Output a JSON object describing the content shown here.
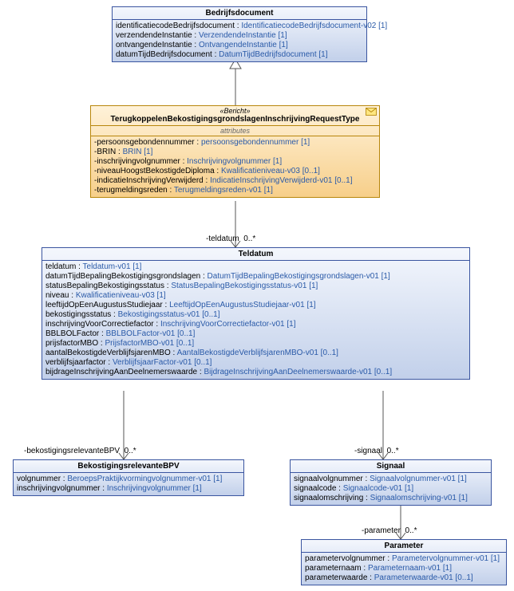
{
  "colors": {
    "blue_border": "#3a55a0",
    "blue_grad_top": "#f4f7fd",
    "blue_grad_bot": "#c2d0ea",
    "orange_border": "#b8860b",
    "orange_grad_top": "#fff2d9",
    "orange_grad_bot": "#f7cf8a",
    "type_text": "#2a5aa8"
  },
  "bedrijfsdocument": {
    "title": "Bedrijfsdocument",
    "attrs": [
      {
        "name": "identificatiecodeBedrijfsdocument",
        "type": "IdentificatiecodeBedrijfsdocument-v02",
        "mult": "[1]"
      },
      {
        "name": "verzendendeInstantie",
        "type": "VerzendendeInstantie",
        "mult": "[1]"
      },
      {
        "name": "ontvangendeInstantie",
        "type": "OntvangendeInstantie",
        "mult": "[1]"
      },
      {
        "name": "datumTijdBedrijfsdocument",
        "type": "DatumTijdBedrijfsdocument",
        "mult": "[1]"
      }
    ]
  },
  "bericht": {
    "stereo": "«Bericht»",
    "title": "TerugkoppelenBekostigingsgrondslagenInschrijvingRequestType",
    "subheader": "attributes",
    "attrs": [
      {
        "name": "-persoonsgebondennummer",
        "type": "persoonsgebondennummer",
        "mult": "[1]"
      },
      {
        "name": "-BRIN",
        "type": "BRIN",
        "mult": "[1]"
      },
      {
        "name": "-inschrijvingvolgnummer",
        "type": "Inschrijvingvolgnummer",
        "mult": "[1]"
      },
      {
        "name": "-niveauHoogstBekostigdeDiploma",
        "type": "Kwalificatieniveau-v03",
        "mult": "[0..1]"
      },
      {
        "name": "-indicatieInschrijvingVerwijderd",
        "type": "IndicatieInschrijvingVerwijderd-v01",
        "mult": "[0..1]"
      },
      {
        "name": "-terugmeldingsreden",
        "type": "Terugmeldingsreden-v01",
        "mult": "[1]"
      }
    ]
  },
  "teldatum": {
    "title": "Teldatum",
    "attrs": [
      {
        "name": "teldatum",
        "type": "Teldatum-v01",
        "mult": "[1]"
      },
      {
        "name": "datumTijdBepalingBekostigingsgrondslagen",
        "type": "DatumTijdBepalingBekostigingsgrondslagen-v01",
        "mult": "[1]"
      },
      {
        "name": "statusBepalingBekostigingsstatus",
        "type": "StatusBepalingBekostigingsstatus-v01",
        "mult": "[1]"
      },
      {
        "name": "niveau",
        "type": "Kwalificatieniveau-v03",
        "mult": "[1]"
      },
      {
        "name": "leeftijdOpEenAugustusStudiejaar",
        "type": "LeeftijdOpEenAugustusStudiejaar-v01",
        "mult": "[1]"
      },
      {
        "name": "bekostigingsstatus",
        "type": "Bekostigingsstatus-v01",
        "mult": "[0..1]"
      },
      {
        "name": "inschrijvingVoorCorrectiefactor",
        "type": "InschrijvingVoorCorrectiefactor-v01",
        "mult": "[1]"
      },
      {
        "name": "BBLBOLFactor",
        "type": "BBLBOLFactor-v01",
        "mult": "[0..1]"
      },
      {
        "name": "prijsfactorMBO",
        "type": "PrijsfactorMBO-v01",
        "mult": "[0..1]"
      },
      {
        "name": "aantalBekostigdeVerblijfsjarenMBO",
        "type": "AantalBekostigdeVerblijfsjarenMBO-v01",
        "mult": "[0..1]"
      },
      {
        "name": "verblijfsjaarfactor",
        "type": "VerblijfsjaarFactor-v01",
        "mult": "[0..1]"
      },
      {
        "name": "bijdrageInschrijvingAanDeelnemerswaarde",
        "type": "BijdrageInschrijvingAanDeelnemerswaarde-v01",
        "mult": "[0..1]"
      }
    ]
  },
  "bpv": {
    "title": "BekostigingsrelevanteBPV",
    "attrs": [
      {
        "name": "volgnummer",
        "type": "BeroepsPraktijkvormingvolgnummer-v01",
        "mult": "[1]"
      },
      {
        "name": "inschrijvingvolgnummer",
        "type": "Inschrijvingvolgnummer",
        "mult": "[1]"
      }
    ]
  },
  "signaal": {
    "title": "Signaal",
    "attrs": [
      {
        "name": "signaalvolgnummer",
        "type": "Signaalvolgnummer-v01",
        "mult": "[1]"
      },
      {
        "name": "signaalcode",
        "type": "Signaalcode-v01",
        "mult": "[1]"
      },
      {
        "name": "signaalomschrijving",
        "type": "Signaalomschrijving-v01",
        "mult": "[1]"
      }
    ]
  },
  "parameter": {
    "title": "Parameter",
    "attrs": [
      {
        "name": "parametervolgnummer",
        "type": "Parametervolgnummer-v01",
        "mult": "[1]"
      },
      {
        "name": "parameternaam",
        "type": "Parameternaam-v01",
        "mult": "[1]"
      },
      {
        "name": "parameterwaarde",
        "type": "Parameterwaarde-v01",
        "mult": "[0..1]"
      }
    ]
  },
  "labels": {
    "teldatum_assoc": "-teldatum",
    "teldatum_mult": "0..*",
    "bpv_assoc": "-bekostigingsrelevanteBPV",
    "bpv_mult": "0..*",
    "signaal_assoc": "-signaal",
    "signaal_mult": "0..*",
    "parameter_assoc": "-parameter",
    "parameter_mult": "0..*"
  }
}
